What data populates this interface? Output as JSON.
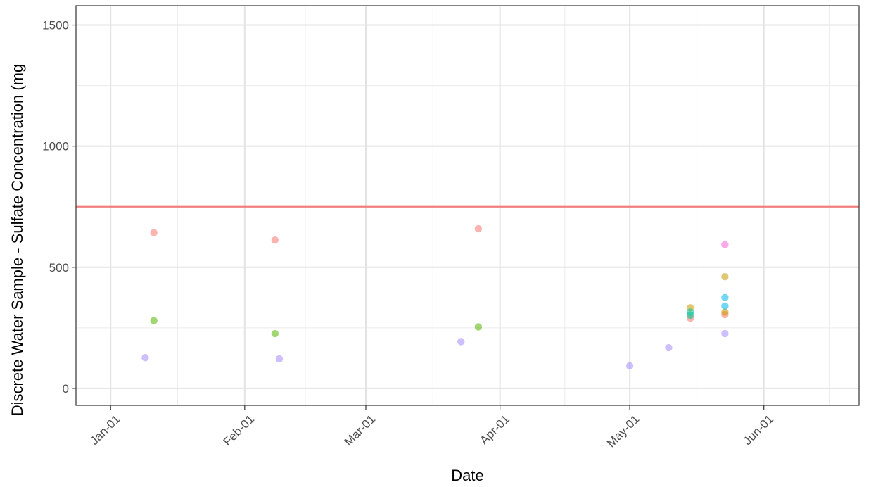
{
  "chart_data": {
    "type": "scatter",
    "title": "",
    "xlabel": "Date",
    "ylabel": "Discrete Water Sample - Sulfate Concentration (mg",
    "x_ticks": [
      "Jan-01",
      "Feb-01",
      "Mar-01",
      "Apr-01",
      "May-01",
      "Jun-01"
    ],
    "y_ticks": [
      "0",
      "500",
      "1000",
      "1500"
    ],
    "xlim": [
      "2020-12-24",
      "2021-06-23"
    ],
    "ylim": [
      -70,
      1580
    ],
    "grid": true,
    "reference_line": {
      "y": 750,
      "color": "#f08080"
    },
    "series": [
      {
        "color": "#f8766d",
        "points": [
          {
            "x": "2021-01-11",
            "y": 643
          },
          {
            "x": "2021-02-08",
            "y": 612
          },
          {
            "x": "2021-03-27",
            "y": 659
          },
          {
            "x": "2021-05-15",
            "y": 290
          },
          {
            "x": "2021-05-23",
            "y": 305
          }
        ]
      },
      {
        "color": "#c49a00",
        "points": [
          {
            "x": "2021-05-15",
            "y": 333
          },
          {
            "x": "2021-05-23",
            "y": 461
          },
          {
            "x": "2021-05-23",
            "y": 315
          }
        ]
      },
      {
        "color": "#53b400",
        "points": [
          {
            "x": "2021-01-11",
            "y": 280
          },
          {
            "x": "2021-02-08",
            "y": 226
          },
          {
            "x": "2021-03-27",
            "y": 254
          }
        ]
      },
      {
        "color": "#00c094",
        "points": [
          {
            "x": "2021-05-15",
            "y": 315
          },
          {
            "x": "2021-05-15",
            "y": 302
          }
        ]
      },
      {
        "color": "#00b6eb",
        "points": [
          {
            "x": "2021-05-23",
            "y": 375
          },
          {
            "x": "2021-05-23",
            "y": 340
          }
        ]
      },
      {
        "color": "#a58aff",
        "points": [
          {
            "x": "2021-01-09",
            "y": 127
          },
          {
            "x": "2021-02-09",
            "y": 122
          },
          {
            "x": "2021-03-23",
            "y": 193
          },
          {
            "x": "2021-05-01",
            "y": 93
          },
          {
            "x": "2021-05-10",
            "y": 168
          },
          {
            "x": "2021-05-23",
            "y": 226
          }
        ]
      },
      {
        "color": "#fb61d7",
        "points": [
          {
            "x": "2021-05-23",
            "y": 593
          }
        ]
      }
    ]
  }
}
